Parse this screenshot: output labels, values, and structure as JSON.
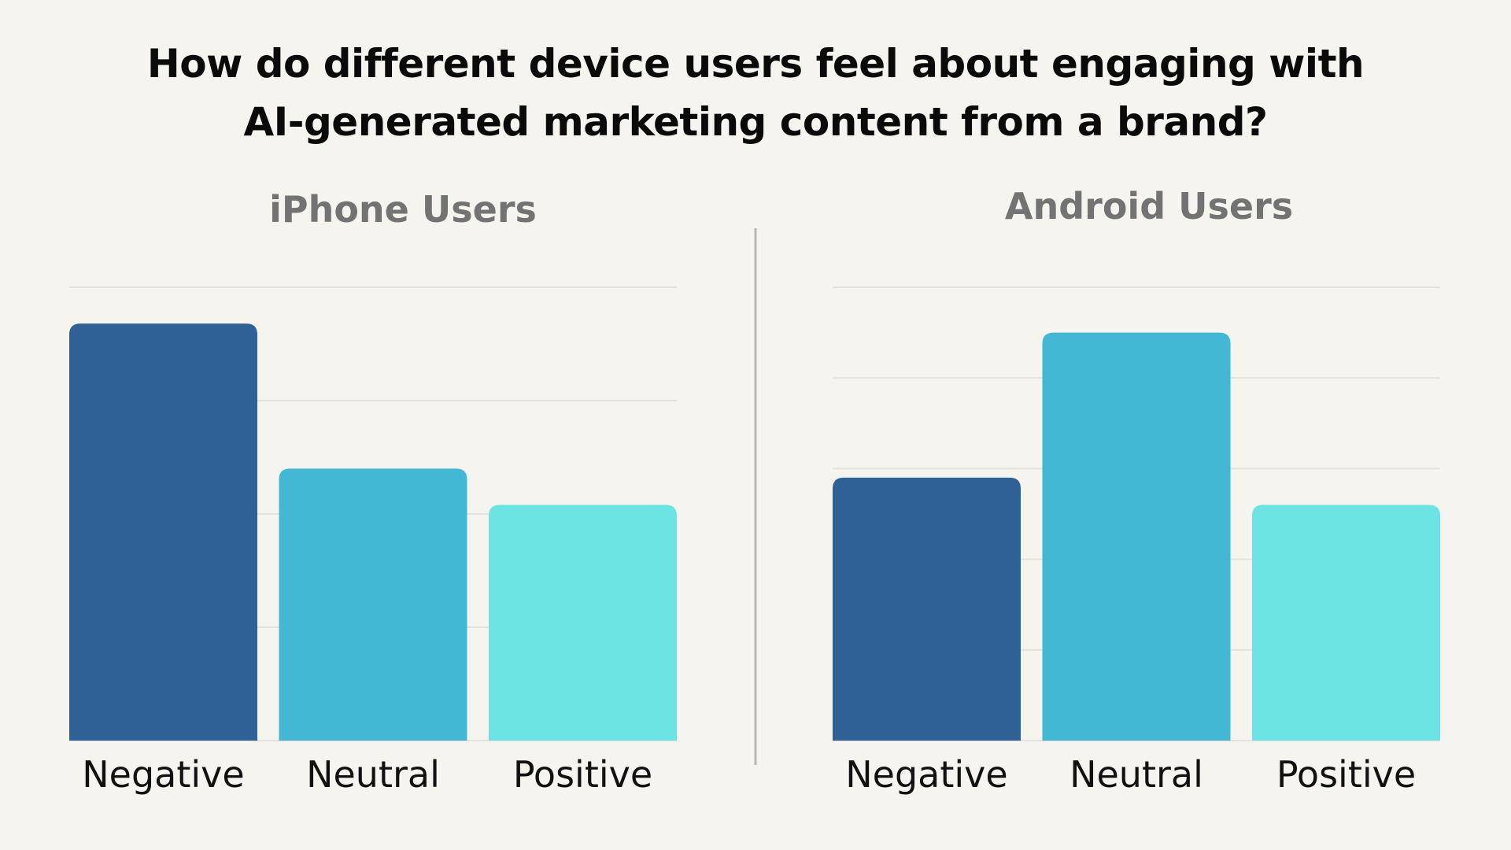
{
  "title": {
    "line1": "How do different device users feel about engaging with",
    "line2": "AI-generated marketing content from a brand?"
  },
  "colors": {
    "background": "#f5f4ef",
    "negative": "#2f6096",
    "neutral": "#42b8d5",
    "positive": "#6ce4e4",
    "gridline": "#e3e2dc",
    "panel_title": "#737373"
  },
  "chart_data": [
    {
      "type": "bar",
      "title": "iPhone Users",
      "categories": [
        "Negative",
        "Neutral",
        "Positive"
      ],
      "values": [
        46,
        30,
        26
      ],
      "ylim": [
        0,
        50
      ],
      "gridlines": [
        0,
        12.5,
        25,
        37.5,
        50
      ],
      "grid": true,
      "xlabel": "",
      "ylabel": ""
    },
    {
      "type": "bar",
      "title": "Android Users",
      "categories": [
        "Negative",
        "Neutral",
        "Positive"
      ],
      "values": [
        29,
        45,
        26
      ],
      "ylim": [
        0,
        50
      ],
      "gridlines": [
        0,
        10,
        20,
        30,
        40,
        50
      ],
      "grid": true,
      "xlabel": "",
      "ylabel": ""
    }
  ]
}
